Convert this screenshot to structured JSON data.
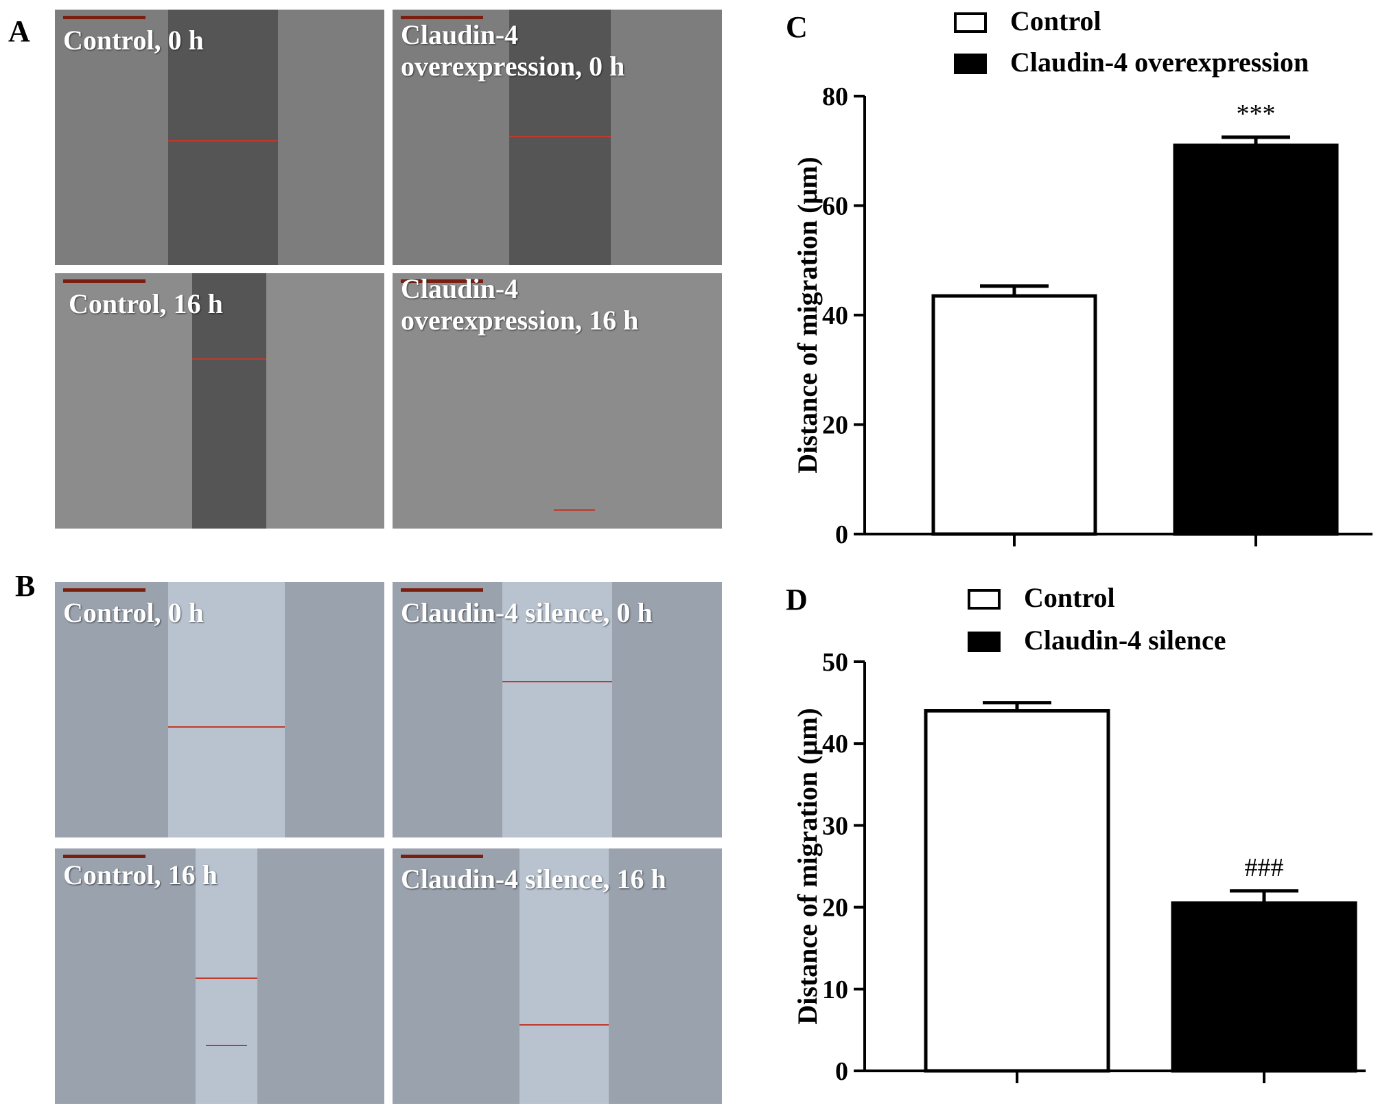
{
  "panels": {
    "A": {
      "letter": "A",
      "images": [
        {
          "caption": "Control, 0 h"
        },
        {
          "caption": "Claudin-4\noverexpression, 0 h"
        },
        {
          "caption": "Control, 16 h"
        },
        {
          "caption": "Claudin-4\noverexpression, 16 h"
        }
      ]
    },
    "B": {
      "letter": "B",
      "images": [
        {
          "caption": "Control, 0 h"
        },
        {
          "caption": "Claudin-4 silence, 0 h"
        },
        {
          "caption": "Control, 16 h"
        },
        {
          "caption": "Claudin-4 silence, 16 h"
        }
      ]
    },
    "C": {
      "letter": "C"
    },
    "D": {
      "letter": "D"
    }
  },
  "colors": {
    "control_fill": "#ffffff",
    "treatment_fill": "#000000",
    "axis": "#000000",
    "micrograph_A_top": "#7d7d7d",
    "micrograph_A_bottom": "#8c8c8c",
    "micrograph_B": "#9aa2ad",
    "wound_A": "#555555",
    "wound_B": "#b9c3d0"
  },
  "chart_data": [
    {
      "type": "bar",
      "categories": [
        "Control",
        "Claudin-4 overexpression"
      ],
      "values": [
        43.5,
        71
      ],
      "errors": [
        1.8,
        1.5
      ],
      "annotations": [
        "",
        "***"
      ],
      "fills": [
        "#ffffff",
        "#000000"
      ],
      "ylabel": "Distance of migration (μm)",
      "xlabel": "",
      "ylim": [
        0,
        80
      ],
      "yticks": [
        "0",
        "20",
        "40",
        "60",
        "80"
      ],
      "legend": [
        "Control",
        "Claudin-4 overexpression"
      ],
      "legend_position": "top"
    },
    {
      "type": "bar",
      "categories": [
        "Control",
        "Claudin-4 silence"
      ],
      "values": [
        44,
        20.5
      ],
      "errors": [
        1.0,
        1.5
      ],
      "annotations": [
        "",
        "###"
      ],
      "fills": [
        "#ffffff",
        "#000000"
      ],
      "ylabel": "Distance of migration (μm)",
      "xlabel": "",
      "ylim": [
        0,
        50
      ],
      "yticks": [
        "0",
        "10",
        "20",
        "30",
        "40",
        "50"
      ],
      "legend": [
        "Control",
        "Claudin-4 silence"
      ],
      "legend_position": "top"
    }
  ]
}
